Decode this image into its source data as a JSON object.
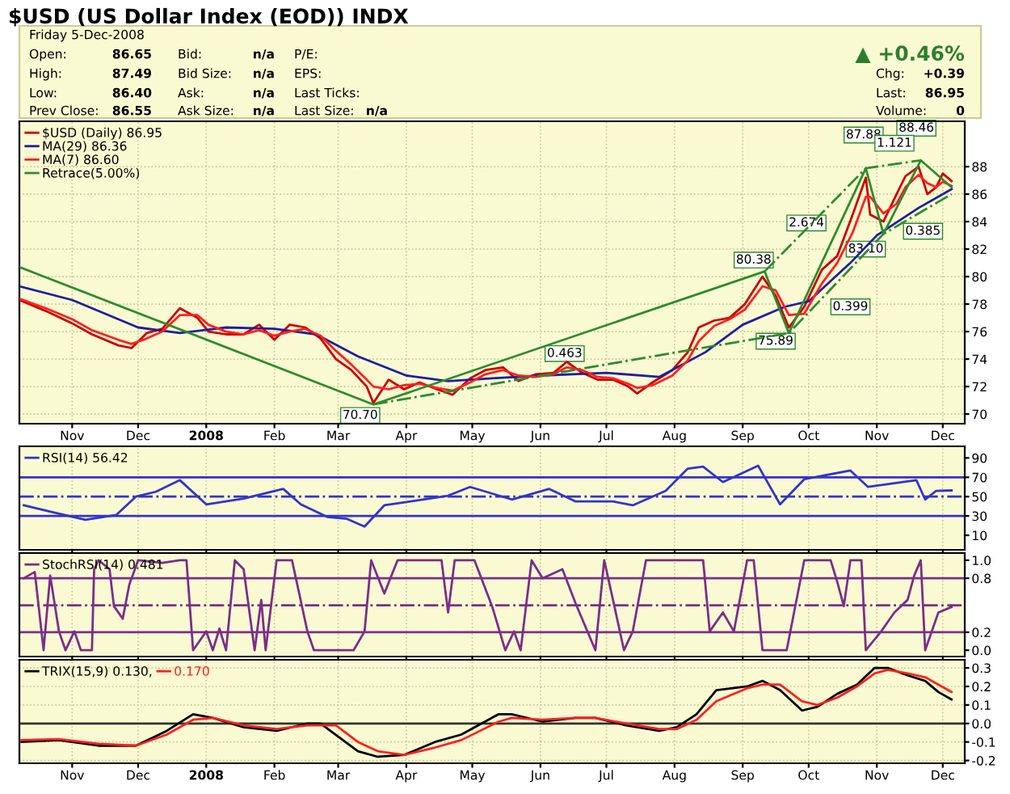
{
  "chart_data": [
    {
      "type": "other",
      "title": "$USD (US Dollar Index (EOD)) INDX",
      "subtitle": "Friday 5-Dec-2008",
      "annotations": [
        "Open:",
        "High:",
        "Low:",
        "Prev Close:",
        "86.65",
        "87.49",
        "86.40",
        "86.55",
        "Bid:",
        "Bid Size:",
        "Ask:",
        "Ask Size:",
        "n/a",
        "n/a",
        "n/a",
        "n/a",
        "P/E:",
        "EPS:",
        "Last Ticks:",
        "Last Size:",
        "n/a",
        "▲ +0.46%",
        "Chg:",
        "Last:",
        "Volume:",
        "+0.39",
        "86.95",
        "0"
      ]
    },
    {
      "type": "line",
      "x": [
        "2007-10-08",
        "2007-10-20",
        "2007-11-01",
        "2007-11-10",
        "2007-11-22",
        "2007-11-28",
        "2007-12-05",
        "2007-12-12",
        "2007-12-20",
        "2007-12-28",
        "2008-01-02",
        "2008-01-10",
        "2008-01-18",
        "2008-01-25",
        "2008-02-01",
        "2008-02-08",
        "2008-02-15",
        "2008-02-22",
        "2008-02-29",
        "2008-03-07",
        "2008-03-14",
        "2008-03-17",
        "2008-03-24",
        "2008-03-31",
        "2008-04-07",
        "2008-04-15",
        "2008-04-22",
        "2008-04-30",
        "2008-05-07",
        "2008-05-15",
        "2008-05-22",
        "2008-05-30",
        "2008-06-07",
        "2008-06-13",
        "2008-06-20",
        "2008-06-27",
        "2008-07-04",
        "2008-07-11",
        "2008-07-15",
        "2008-07-22",
        "2008-07-31",
        "2008-08-07",
        "2008-08-12",
        "2008-08-19",
        "2008-08-26",
        "2008-09-02",
        "2008-09-10",
        "2008-09-16",
        "2008-09-22",
        "2008-09-29",
        "2008-10-07",
        "2008-10-14",
        "2008-10-21",
        "2008-10-27",
        "2008-10-29",
        "2008-11-04",
        "2008-11-10",
        "2008-11-14",
        "2008-11-20",
        "2008-11-24",
        "2008-11-28",
        "2008-12-01",
        "2008-12-05"
      ],
      "series": [
        {
          "name": "$USD (Daily) 86.95",
          "color": "#cc0000",
          "values": [
            78.3,
            77.5,
            76.6,
            75.8,
            75.0,
            74.8,
            75.9,
            76.2,
            77.7,
            77.0,
            76.0,
            75.8,
            75.8,
            76.5,
            75.4,
            76.5,
            76.3,
            75.5,
            74.0,
            73.2,
            72.0,
            70.8,
            72.5,
            71.8,
            72.3,
            71.8,
            71.4,
            72.6,
            73.2,
            73.4,
            72.4,
            72.9,
            73.0,
            73.8,
            73.0,
            72.5,
            72.5,
            72.0,
            71.5,
            72.3,
            73.2,
            74.5,
            76.3,
            76.8,
            77.0,
            78.0,
            80.0,
            78.6,
            76.3,
            77.8,
            80.5,
            81.5,
            84.5,
            87.2,
            84.5,
            84.0,
            86.0,
            87.3,
            88.0,
            86.0,
            86.5,
            87.5,
            86.95
          ]
        },
        {
          "name": "MA(29) 86.36",
          "color": "#1f1f9e",
          "x": [
            "2007-10-08",
            "2007-11-01",
            "2007-12-01",
            "2007-12-20",
            "2008-01-10",
            "2008-02-01",
            "2008-02-20",
            "2008-03-10",
            "2008-04-01",
            "2008-04-20",
            "2008-05-10",
            "2008-06-01",
            "2008-07-01",
            "2008-07-25",
            "2008-08-15",
            "2008-09-01",
            "2008-09-20",
            "2008-10-01",
            "2008-10-20",
            "2008-11-01",
            "2008-11-20",
            "2008-12-05"
          ],
          "values": [
            79.3,
            78.3,
            76.3,
            75.9,
            76.3,
            76.2,
            75.8,
            74.2,
            72.8,
            72.4,
            72.6,
            72.8,
            73.0,
            72.7,
            74.5,
            76.5,
            77.8,
            78.2,
            81.0,
            83.0,
            85.0,
            86.36
          ]
        },
        {
          "name": "MA(7) 86.60",
          "color": "#ff2020",
          "values": [
            78.4,
            77.7,
            76.9,
            76.1,
            75.4,
            75.1,
            75.5,
            76.0,
            77.2,
            77.2,
            76.5,
            76.0,
            75.8,
            76.1,
            75.7,
            76.0,
            76.2,
            75.7,
            74.6,
            73.6,
            72.5,
            72.0,
            71.8,
            72.1,
            72.2,
            71.9,
            71.7,
            72.3,
            72.9,
            73.2,
            72.8,
            72.7,
            72.9,
            73.4,
            73.2,
            72.7,
            72.6,
            72.2,
            71.9,
            72.1,
            72.8,
            73.9,
            75.3,
            76.4,
            76.9,
            77.6,
            79.3,
            79.0,
            77.2,
            77.3,
            79.5,
            81.0,
            83.2,
            85.8,
            85.8,
            84.6,
            85.3,
            86.5,
            87.4,
            86.8,
            86.5,
            86.9,
            86.6
          ]
        },
        {
          "name": "Retrace(5.00%)",
          "color": "#2e8b2e",
          "x": [
            "2007-10-08",
            "2008-03-17",
            "2008-09-11",
            "2008-09-22",
            "2008-10-27",
            "2008-11-04",
            "2008-11-21",
            "2008-12-05"
          ],
          "values": [
            80.7,
            70.7,
            80.38,
            75.89,
            87.88,
            83.1,
            88.46,
            86.5
          ]
        },
        {
          "color": "#2e8b2e",
          "line_style": "dashed",
          "x": [
            "2008-03-17",
            "2008-09-22",
            "2008-11-04",
            "2008-12-05"
          ],
          "values": [
            70.7,
            75.89,
            83.1,
            86.0
          ]
        },
        {
          "color": "#2e8b2e",
          "line_style": "dashed",
          "x": [
            "2008-09-11",
            "2008-10-27",
            "2008-11-21"
          ],
          "values": [
            80.38,
            87.88,
            88.46
          ]
        }
      ],
      "xlim": [
        "2007-10-08",
        "2008-12-11"
      ],
      "xticks": [
        {
          "value": "2007-11-01",
          "label": "Nov"
        },
        {
          "value": "2007-12-01",
          "label": "Dec"
        },
        {
          "value": "2008-01-01",
          "label": "2008"
        },
        {
          "value": "2008-02-01",
          "label": "Feb"
        },
        {
          "value": "2008-03-01",
          "label": "Mar"
        },
        {
          "value": "2008-04-01",
          "label": "Apr"
        },
        {
          "value": "2008-05-01",
          "label": "May"
        },
        {
          "value": "2008-06-01",
          "label": "Jun"
        },
        {
          "value": "2008-07-01",
          "label": "Jul"
        },
        {
          "value": "2008-08-01",
          "label": "Aug"
        },
        {
          "value": "2008-09-01",
          "label": "Sep"
        },
        {
          "value": "2008-10-01",
          "label": "Oct"
        },
        {
          "value": "2008-11-01",
          "label": "Nov"
        },
        {
          "value": "2008-12-01",
          "label": "Dec"
        }
      ],
      "ylim": [
        69.3,
        91.3
      ],
      "yticks": [
        70,
        72,
        74,
        76,
        78,
        80,
        82,
        84,
        86,
        88
      ],
      "grid": true,
      "legend": "top left",
      "annotations": [
        {
          "text": "70.70",
          "x": "2008-03-11",
          "y": 69.9
        },
        {
          "text": "80.38",
          "x": "2008-09-06",
          "y": 81.2
        },
        {
          "text": "75.89",
          "x": "2008-09-16",
          "y": 75.3
        },
        {
          "text": "87.88",
          "x": "2008-10-26",
          "y": 90.3
        },
        {
          "text": "88.46",
          "x": "2008-11-19",
          "y": 90.8
        },
        {
          "text": "83.10",
          "x": "2008-10-27",
          "y": 82.0
        },
        {
          "text": "0.463",
          "x": "2008-06-12",
          "y": 74.4
        },
        {
          "text": "2.674",
          "x": "2008-09-30",
          "y": 83.9
        },
        {
          "text": "0.399",
          "x": "2008-10-20",
          "y": 77.8
        },
        {
          "text": "1.121",
          "x": "2008-11-09",
          "y": 89.7
        },
        {
          "text": "0.385",
          "x": "2008-11-22",
          "y": 83.3
        }
      ]
    },
    {
      "type": "line",
      "tick_labels": "y",
      "x": [
        "2007-10-10",
        "2007-10-23",
        "2007-11-07",
        "2007-11-21",
        "2007-11-30",
        "2007-12-09",
        "2007-12-20",
        "2008-01-01",
        "2008-01-18",
        "2008-02-05",
        "2008-02-13",
        "2008-02-25",
        "2008-03-05",
        "2008-03-13",
        "2008-03-22",
        "2008-04-03",
        "2008-04-20",
        "2008-04-30",
        "2008-05-19",
        "2008-06-05",
        "2008-06-17",
        "2008-07-04",
        "2008-07-13",
        "2008-07-28",
        "2008-08-07",
        "2008-08-14",
        "2008-08-23",
        "2008-09-08",
        "2008-09-18",
        "2008-09-29",
        "2008-10-20",
        "2008-10-28",
        "2008-11-19",
        "2008-11-23",
        "2008-11-28",
        "2008-12-05"
      ],
      "series": [
        {
          "name": "RSI(14) 56.42",
          "color": "#3333cc",
          "values": [
            41,
            34,
            26,
            31,
            50,
            55,
            67,
            42,
            48,
            58,
            42,
            29,
            27,
            19,
            41,
            45,
            51,
            60,
            47,
            58,
            45,
            45,
            41,
            56,
            79,
            81,
            65,
            82,
            42,
            68,
            77,
            60,
            67,
            47,
            56,
            56.42
          ]
        }
      ],
      "xlim": [
        "2007-10-08",
        "2008-12-11"
      ],
      "ylim": [
        -5,
        102
      ],
      "yticks": [
        10,
        30,
        50,
        70,
        90
      ],
      "grid": "x",
      "legend": "top left",
      "ref_lines": [
        {
          "axis": "y",
          "value": 70,
          "color": "#3333cc"
        },
        {
          "axis": "y",
          "value": 30,
          "color": "#3333cc"
        },
        {
          "axis": "y",
          "value": 50,
          "color": "#3333cc",
          "line_style": "dashed"
        }
      ]
    },
    {
      "type": "line",
      "tick_labels": "y",
      "x": [
        "2007-10-10",
        "2007-10-15",
        "2007-10-19",
        "2007-10-22",
        "2007-10-26",
        "2007-10-29",
        "2007-11-02",
        "2007-11-05",
        "2007-11-10",
        "2007-11-11",
        "2007-11-13",
        "2007-11-18",
        "2007-11-20",
        "2007-11-24",
        "2007-11-27",
        "2007-12-01",
        "2007-12-12",
        "2007-12-20",
        "2007-12-23",
        "2007-12-26",
        "2008-01-01",
        "2008-01-04",
        "2008-01-07",
        "2008-01-10",
        "2008-01-14",
        "2008-01-18",
        "2008-01-23",
        "2008-01-26",
        "2008-01-28",
        "2008-02-02",
        "2008-02-09",
        "2008-02-16",
        "2008-02-19",
        "2008-03-08",
        "2008-03-13",
        "2008-03-16",
        "2008-03-22",
        "2008-03-28",
        "2008-04-17",
        "2008-04-20",
        "2008-04-23",
        "2008-05-02",
        "2008-05-10",
        "2008-05-16",
        "2008-05-20",
        "2008-05-23",
        "2008-05-28",
        "2008-06-02",
        "2008-06-11",
        "2008-06-17",
        "2008-06-26",
        "2008-06-30",
        "2008-07-04",
        "2008-07-09",
        "2008-07-13",
        "2008-07-19",
        "2008-08-14",
        "2008-08-17",
        "2008-08-23",
        "2008-08-28",
        "2008-09-03",
        "2008-09-06",
        "2008-09-10",
        "2008-09-21",
        "2008-09-29",
        "2008-10-11",
        "2008-10-14",
        "2008-10-17",
        "2008-10-20",
        "2008-10-25",
        "2008-10-27",
        "2008-11-03",
        "2008-11-09",
        "2008-11-15",
        "2008-11-18",
        "2008-11-21",
        "2008-11-23",
        "2008-11-29",
        "2008-12-05"
      ],
      "series": [
        {
          "name": "StochRSI(14) 0.481",
          "color": "#7a2e8a",
          "values": [
            0.8,
            0.87,
            0.0,
            0.83,
            0.21,
            0.0,
            0.21,
            0.0,
            0.0,
            0.9,
            1.0,
            0.9,
            0.49,
            0.35,
            0.73,
            1.0,
            0.97,
            1.0,
            1.0,
            0.0,
            0.21,
            0.0,
            0.24,
            0.0,
            1.0,
            0.9,
            0.0,
            0.56,
            0.0,
            1.0,
            1.0,
            0.21,
            0.0,
            0.0,
            0.21,
            1.0,
            0.63,
            1.0,
            1.0,
            0.42,
            1.0,
            1.0,
            0.49,
            0.0,
            0.21,
            0.0,
            1.0,
            0.8,
            0.9,
            0.52,
            0.0,
            1.0,
            0.56,
            0.0,
            0.21,
            1.0,
            1.0,
            0.21,
            0.42,
            0.21,
            1.0,
            1.0,
            0.0,
            0.0,
            1.0,
            1.0,
            0.76,
            0.49,
            1.0,
            1.0,
            0.0,
            0.21,
            0.42,
            0.56,
            0.83,
            1.0,
            0.0,
            0.42,
            0.481
          ]
        }
      ],
      "xlim": [
        "2007-10-08",
        "2008-12-11"
      ],
      "ylim": [
        -0.07,
        1.08
      ],
      "yticks": [
        {
          "value": 0,
          "label": "0.0"
        },
        0.2,
        0.8,
        {
          "value": 1,
          "label": "1.0"
        }
      ],
      "grid": "x",
      "legend": "top left",
      "ref_lines": [
        {
          "axis": "y",
          "value": 0.8,
          "color": "#7a2e8a"
        },
        {
          "axis": "y",
          "value": 0.2,
          "color": "#7a2e8a"
        },
        {
          "axis": "y",
          "value": 0.5,
          "color": "#7a2e8a",
          "line_style": "dashed"
        }
      ]
    },
    {
      "type": "line",
      "series": [
        {
          "name": "TRIX(15,9) 0.130,",
          "color": "#000000",
          "x": [
            "2007-10-09",
            "2007-10-26",
            "2007-11-13",
            "2007-11-30",
            "2007-12-14",
            "2007-12-26",
            "2008-01-04",
            "2008-01-18",
            "2008-02-02",
            "2008-02-16",
            "2008-02-22",
            "2008-03-10",
            "2008-03-19",
            "2008-03-31",
            "2008-04-14",
            "2008-04-26",
            "2008-05-13",
            "2008-05-19",
            "2008-06-02",
            "2008-06-17",
            "2008-06-26",
            "2008-07-10",
            "2008-07-25",
            "2008-08-02",
            "2008-08-11",
            "2008-08-20",
            "2008-09-03",
            "2008-09-10",
            "2008-09-18",
            "2008-09-28",
            "2008-10-05",
            "2008-10-14",
            "2008-10-23",
            "2008-10-31",
            "2008-11-06",
            "2008-11-15",
            "2008-11-23",
            "2008-11-29",
            "2008-12-05"
          ],
          "values": [
            -0.1,
            -0.09,
            -0.12,
            -0.12,
            -0.04,
            0.05,
            0.03,
            -0.02,
            -0.04,
            0.0,
            0.0,
            -0.15,
            -0.18,
            -0.17,
            -0.1,
            -0.06,
            0.05,
            0.05,
            0.01,
            0.03,
            0.03,
            -0.01,
            -0.04,
            -0.02,
            0.05,
            0.18,
            0.2,
            0.23,
            0.18,
            0.07,
            0.09,
            0.16,
            0.21,
            0.3,
            0.3,
            0.26,
            0.23,
            0.17,
            0.13
          ]
        },
        {
          "name": "0.170",
          "color": "#ff2020",
          "x": [
            "2007-10-09",
            "2007-10-26",
            "2007-11-13",
            "2007-11-30",
            "2007-12-14",
            "2007-12-26",
            "2008-01-04",
            "2008-01-18",
            "2008-02-02",
            "2008-02-16",
            "2008-02-29",
            "2008-03-10",
            "2008-03-19",
            "2008-03-31",
            "2008-04-14",
            "2008-04-26",
            "2008-05-13",
            "2008-05-19",
            "2008-06-02",
            "2008-06-17",
            "2008-06-26",
            "2008-07-10",
            "2008-07-25",
            "2008-08-02",
            "2008-08-11",
            "2008-08-20",
            "2008-09-03",
            "2008-09-10",
            "2008-09-18",
            "2008-09-28",
            "2008-10-05",
            "2008-10-14",
            "2008-10-23",
            "2008-10-31",
            "2008-11-06",
            "2008-11-15",
            "2008-11-23",
            "2008-11-29",
            "2008-12-05"
          ],
          "values": [
            -0.09,
            -0.085,
            -0.11,
            -0.12,
            -0.06,
            0.02,
            0.03,
            -0.01,
            -0.03,
            -0.01,
            -0.01,
            -0.1,
            -0.15,
            -0.17,
            -0.13,
            -0.09,
            0.01,
            0.03,
            0.02,
            0.03,
            0.03,
            0.0,
            -0.03,
            -0.03,
            0.02,
            0.12,
            0.19,
            0.21,
            0.21,
            0.12,
            0.1,
            0.14,
            0.2,
            0.27,
            0.29,
            0.27,
            0.25,
            0.21,
            0.17
          ]
        }
      ],
      "xlim": [
        "2007-10-08",
        "2008-12-11"
      ],
      "xticks": [
        {
          "value": "2007-11-01",
          "label": "Nov"
        },
        {
          "value": "2007-12-01",
          "label": "Dec"
        },
        {
          "value": "2008-01-01",
          "label": "2008"
        },
        {
          "value": "2008-02-01",
          "label": "Feb"
        },
        {
          "value": "2008-03-01",
          "label": "Mar"
        },
        {
          "value": "2008-04-01",
          "label": "Apr"
        },
        {
          "value": "2008-05-01",
          "label": "May"
        },
        {
          "value": "2008-06-01",
          "label": "Jun"
        },
        {
          "value": "2008-07-01",
          "label": "Jul"
        },
        {
          "value": "2008-08-01",
          "label": "Aug"
        },
        {
          "value": "2008-09-01",
          "label": "Sep"
        },
        {
          "value": "2008-10-01",
          "label": "Oct"
        },
        {
          "value": "2008-11-01",
          "label": "Nov"
        },
        {
          "value": "2008-12-01",
          "label": "Dec"
        }
      ],
      "ylim": [
        -0.215,
        0.344
      ],
      "yticks": [
        {
          "value": -0.2,
          "label": "-0.2"
        },
        {
          "value": -0.1,
          "label": "-0.1"
        },
        {
          "value": 0,
          "label": "0.0"
        },
        0.1,
        0.2,
        0.3
      ],
      "grid": true,
      "legend": "top left",
      "ref_lines": [
        {
          "axis": "y",
          "value": 0,
          "color": "#333333"
        }
      ]
    }
  ]
}
